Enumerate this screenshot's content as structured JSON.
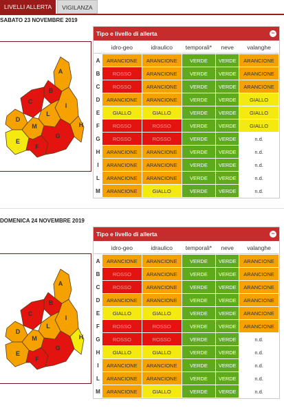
{
  "tabs": [
    {
      "label": "LIVELLI ALLERTA",
      "active": true
    },
    {
      "label": "VIGILANZA",
      "active": false
    }
  ],
  "panel_title": "Tipo e livello di allerta",
  "collapse_icon": "minus-circle-icon",
  "columns": [
    "idro-geo",
    "idraulico",
    "temporali*",
    "neve",
    "valanghe"
  ],
  "colors": {
    "ARANCIONE": "#f5a100",
    "ROSSO": "#e3130f",
    "VERDE": "#5faa1c",
    "GIALLO": "#f4ea10",
    "brand": "#9b1b1b"
  },
  "days": [
    {
      "title": "SABATO 23 NOVEMBRE 2019",
      "rows": [
        {
          "zone": "A",
          "levels": [
            "ARANCIONE",
            "ARANCIONE",
            "VERDE",
            "VERDE",
            "ARANCIONE"
          ]
        },
        {
          "zone": "B",
          "levels": [
            "ROSSO",
            "ARANCIONE",
            "VERDE",
            "VERDE",
            "ARANCIONE"
          ]
        },
        {
          "zone": "C",
          "levels": [
            "ROSSO",
            "ARANCIONE",
            "VERDE",
            "VERDE",
            "ARANCIONE"
          ]
        },
        {
          "zone": "D",
          "levels": [
            "ARANCIONE",
            "ARANCIONE",
            "VERDE",
            "VERDE",
            "GIALLO"
          ]
        },
        {
          "zone": "E",
          "levels": [
            "GIALLO",
            "GIALLO",
            "VERDE",
            "VERDE",
            "GIALLO"
          ]
        },
        {
          "zone": "F",
          "levels": [
            "ROSSO",
            "ROSSO",
            "VERDE",
            "VERDE",
            "GIALLO"
          ]
        },
        {
          "zone": "G",
          "levels": [
            "ROSSO",
            "ROSSO",
            "VERDE",
            "VERDE",
            "n.d."
          ]
        },
        {
          "zone": "H",
          "levels": [
            "ARANCIONE",
            "ARANCIONE",
            "VERDE",
            "VERDE",
            "n.d."
          ]
        },
        {
          "zone": "I",
          "levels": [
            "ARANCIONE",
            "ARANCIONE",
            "VERDE",
            "VERDE",
            "n.d."
          ]
        },
        {
          "zone": "L",
          "levels": [
            "ARANCIONE",
            "ARANCIONE",
            "VERDE",
            "VERDE",
            "n.d."
          ]
        },
        {
          "zone": "M",
          "levels": [
            "ARANCIONE",
            "GIALLO",
            "VERDE",
            "VERDE",
            "n.d."
          ]
        }
      ],
      "map_zones": {
        "A": "ARANCIONE",
        "B": "ROSSO",
        "C": "ROSSO",
        "D": "ARANCIONE",
        "E": "GIALLO",
        "F": "ROSSO",
        "G": "ROSSO",
        "H": "ARANCIONE",
        "I": "ARANCIONE",
        "L": "ARANCIONE",
        "M": "ARANCIONE"
      }
    },
    {
      "title": "DOMENICA 24 NOVEMBRE 2019",
      "rows": [
        {
          "zone": "A",
          "levels": [
            "ARANCIONE",
            "ARANCIONE",
            "VERDE",
            "VERDE",
            "ARANCIONE"
          ]
        },
        {
          "zone": "B",
          "levels": [
            "ROSSO",
            "ARANCIONE",
            "VERDE",
            "VERDE",
            "ARANCIONE"
          ]
        },
        {
          "zone": "C",
          "levels": [
            "ROSSO",
            "ARANCIONE",
            "VERDE",
            "VERDE",
            "ARANCIONE"
          ]
        },
        {
          "zone": "D",
          "levels": [
            "ARANCIONE",
            "ARANCIONE",
            "VERDE",
            "VERDE",
            "ARANCIONE"
          ]
        },
        {
          "zone": "E",
          "levels": [
            "GIALLO",
            "GIALLO",
            "VERDE",
            "VERDE",
            "ARANCIONE"
          ]
        },
        {
          "zone": "F",
          "levels": [
            "ROSSO",
            "ROSSO",
            "VERDE",
            "VERDE",
            "ARANCIONE"
          ]
        },
        {
          "zone": "G",
          "levels": [
            "ROSSO",
            "ROSSO",
            "VERDE",
            "VERDE",
            "n.d."
          ]
        },
        {
          "zone": "H",
          "levels": [
            "GIALLO",
            "GIALLO",
            "VERDE",
            "VERDE",
            "n.d."
          ]
        },
        {
          "zone": "I",
          "levels": [
            "ARANCIONE",
            "ARANCIONE",
            "VERDE",
            "VERDE",
            "n.d."
          ]
        },
        {
          "zone": "L",
          "levels": [
            "ARANCIONE",
            "ARANCIONE",
            "VERDE",
            "VERDE",
            "n.d."
          ]
        },
        {
          "zone": "M",
          "levels": [
            "ARANCIONE",
            "GIALLO",
            "VERDE",
            "VERDE",
            "n.d."
          ]
        }
      ],
      "map_zones": {
        "A": "ARANCIONE",
        "B": "ROSSO",
        "C": "ROSSO",
        "D": "ARANCIONE",
        "E": "ARANCIONE",
        "F": "ROSSO",
        "G": "ROSSO",
        "H": "GIALLO",
        "I": "ARANCIONE",
        "L": "ARANCIONE",
        "M": "ARANCIONE"
      }
    }
  ]
}
